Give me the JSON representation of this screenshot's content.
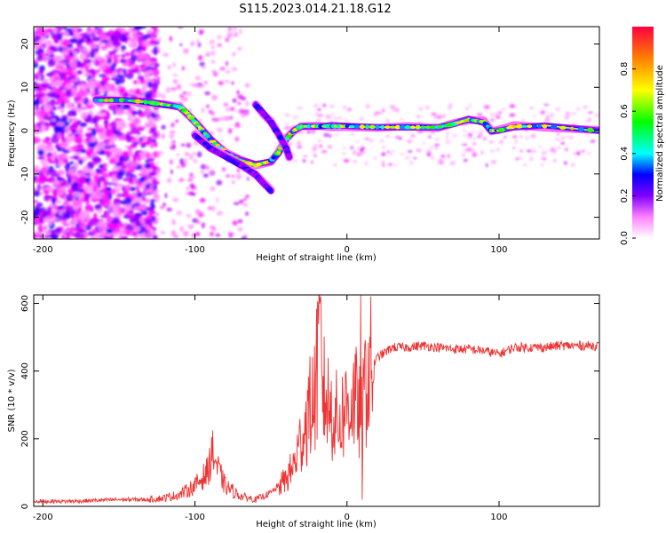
{
  "title": "S115.2023.014.21.18.G12",
  "chart_data": [
    {
      "type": "heatmap",
      "xlabel": "Height of straight line (km)",
      "ylabel": "Frequency (Hz)",
      "xlim": [
        -206,
        166
      ],
      "ylim": [
        -25,
        24
      ],
      "x_ticks": [
        -200,
        -100,
        0,
        100
      ],
      "y_ticks": [
        -20,
        -10,
        0,
        10,
        20
      ],
      "grid": false,
      "colorbar": {
        "label": "Normalized spectral amplitude",
        "range": [
          0,
          1
        ],
        "ticks": [
          "0.0",
          "0.2",
          "0.4",
          "0.6",
          "0.8"
        ],
        "colormap": [
          "#ffffff",
          "#ff00ff",
          "#8000ff",
          "#0000ff",
          "#00ffff",
          "#00ff00",
          "#ffff00",
          "#ff8000",
          "#ff0000"
        ]
      },
      "ridges": [
        {
          "points": [
            [
              -165,
              7
            ],
            [
              -145,
              7
            ],
            [
              -130,
              6.5
            ],
            [
              -120,
              6
            ],
            [
              -110,
              5.5
            ],
            [
              -105,
              4
            ],
            [
              -100,
              2
            ],
            [
              -95,
              0
            ],
            [
              -90,
              -2
            ],
            [
              -80,
              -5
            ],
            [
              -70,
              -7
            ],
            [
              -60,
              -8
            ],
            [
              -50,
              -7
            ],
            [
              -45,
              -5
            ],
            [
              -40,
              -2
            ],
            [
              -35,
              0
            ],
            [
              -30,
              1
            ],
            [
              -20,
              1
            ],
            [
              -10,
              1
            ],
            [
              0,
              1
            ],
            [
              20,
              0.8
            ],
            [
              40,
              0.8
            ],
            [
              60,
              0.8
            ],
            [
              70,
              1.5
            ],
            [
              80,
              2.5
            ],
            [
              90,
              2
            ],
            [
              95,
              0
            ],
            [
              100,
              0
            ],
            [
              110,
              1
            ],
            [
              130,
              1
            ],
            [
              166,
              0
            ]
          ],
          "amp": 0.75
        },
        {
          "points": [
            [
              -100,
              -1
            ],
            [
              -90,
              -4
            ],
            [
              -80,
              -6
            ],
            [
              -70,
              -8
            ],
            [
              -60,
              -10
            ],
            [
              -55,
              -12
            ],
            [
              -50,
              -14
            ]
          ],
          "amp": 0.35
        },
        {
          "points": [
            [
              -60,
              6
            ],
            [
              -55,
              4
            ],
            [
              -50,
              2
            ],
            [
              -45,
              -1
            ],
            [
              -40,
              -4
            ],
            [
              -38,
              -6
            ]
          ],
          "amp": 0.35
        }
      ]
    },
    {
      "type": "line",
      "xlabel": "Height of straight line (km)",
      "ylabel": "SNR (10 * v/v)",
      "xlim": [
        -206,
        166
      ],
      "ylim": [
        0,
        625
      ],
      "x_ticks": [
        -200,
        -100,
        0,
        100
      ],
      "y_ticks": [
        0,
        200,
        400,
        600
      ],
      "grid": false,
      "color": "#ee3333",
      "series": [
        {
          "x": [
            -206,
            -180,
            -150,
            -130,
            -120,
            -110,
            -100,
            -92,
            -88,
            -85,
            -80,
            -70,
            -60,
            -50,
            -40,
            -35,
            -30,
            -25,
            -20,
            -18,
            -15,
            -10,
            -5,
            0,
            5,
            8,
            10,
            12,
            15,
            20,
            30,
            40,
            50,
            60,
            70,
            80,
            90,
            100,
            110,
            120,
            130,
            140,
            150,
            166
          ],
          "y": [
            15,
            15,
            20,
            20,
            25,
            35,
            60,
            100,
            160,
            110,
            60,
            30,
            20,
            40,
            80,
            120,
            200,
            280,
            340,
            500,
            330,
            280,
            250,
            300,
            320,
            280,
            250,
            360,
            400,
            440,
            470,
            470,
            475,
            470,
            465,
            465,
            460,
            450,
            470,
            470,
            470,
            475,
            475,
            475
          ]
        }
      ],
      "annotations": [
        {
          "x": -89,
          "y": 205
        },
        {
          "x": -20,
          "y": 585
        },
        {
          "x": 9,
          "y": 625
        },
        {
          "x": 10,
          "y": 20
        }
      ]
    }
  ]
}
